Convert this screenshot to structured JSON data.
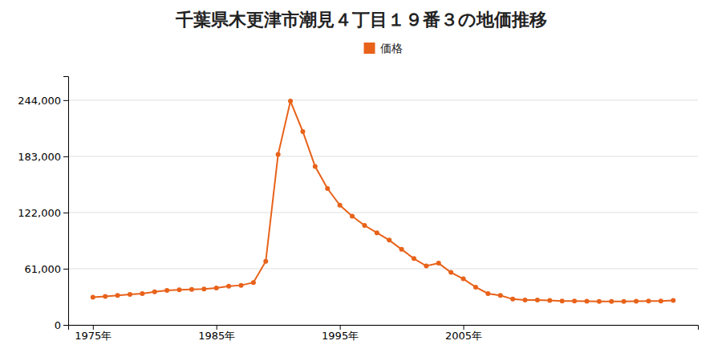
{
  "chart_data": {
    "type": "line",
    "title": "千葉県木更津市潮見４丁目１９番３の地価推移",
    "x": [
      1975,
      1976,
      1977,
      1978,
      1979,
      1980,
      1981,
      1982,
      1983,
      1984,
      1985,
      1986,
      1987,
      1988,
      1989,
      1990,
      1991,
      1992,
      1993,
      1994,
      1995,
      1996,
      1997,
      1998,
      1999,
      2000,
      2001,
      2002,
      2003,
      2004,
      2005,
      2006,
      2007,
      2008,
      2009,
      2010,
      2011,
      2012,
      2013,
      2014,
      2015,
      2016,
      2017,
      2018,
      2019,
      2020,
      2021,
      2022
    ],
    "series": [
      {
        "name": "価格",
        "color": "#e8621a",
        "marker": "circle",
        "values": [
          30000,
          31000,
          32000,
          33000,
          34000,
          36000,
          37500,
          38000,
          38500,
          39000,
          40000,
          42000,
          43000,
          46000,
          69000,
          185000,
          243000,
          210000,
          172000,
          148000,
          130000,
          118000,
          108000,
          100000,
          92000,
          82000,
          72000,
          64000,
          67000,
          57000,
          50000,
          41000,
          34000,
          32000,
          28000,
          27000,
          27000,
          26500,
          26000,
          26000,
          25800,
          25500,
          25500,
          25500,
          25800,
          26000,
          26000,
          26500
        ]
      }
    ],
    "xlim": [
      1973,
      2024
    ],
    "xticks": [
      {
        "value": 1975,
        "label": "1975年"
      },
      {
        "value": 1985,
        "label": "1985年"
      },
      {
        "value": 1995,
        "label": "1995年"
      },
      {
        "value": 2005,
        "label": "2005年"
      }
    ],
    "ylim": [
      0,
      270000
    ],
    "yticks": [
      0,
      {
        "value": 61000,
        "label": "61,000"
      },
      {
        "value": 122000,
        "label": "122,000"
      },
      {
        "value": 183000,
        "label": "183,000"
      },
      {
        "value": 244000,
        "label": "244,000"
      }
    ],
    "grid": "y",
    "legend": "top"
  }
}
